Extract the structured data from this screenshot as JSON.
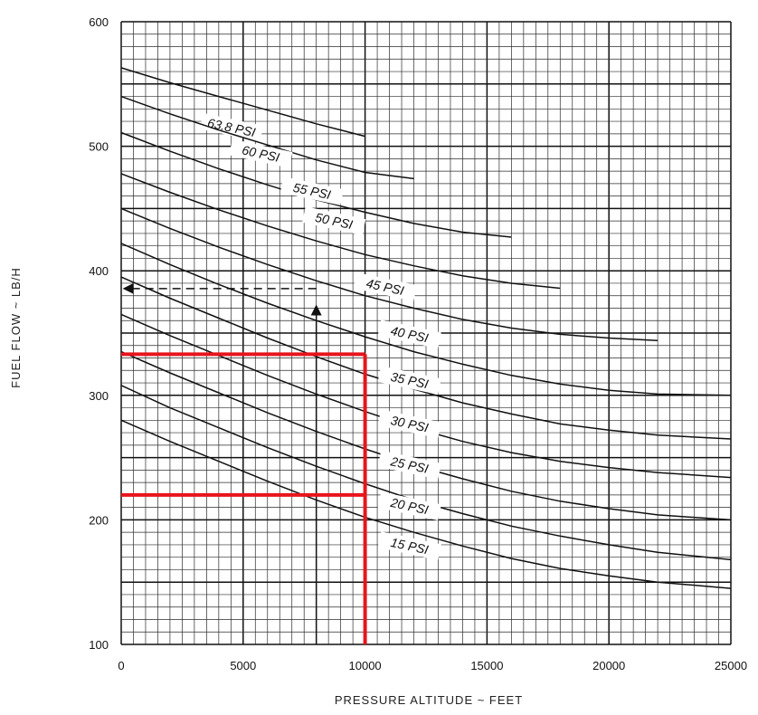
{
  "chart_data": {
    "type": "line",
    "xlabel": "PRESSURE  ALTITUDE  ~  FEET",
    "ylabel": "FUEL  FLOW  ~  LB/H",
    "xlim": [
      0,
      25000
    ],
    "ylim": [
      100,
      600
    ],
    "x_ticks": [
      0,
      5000,
      10000,
      15000,
      20000,
      25000
    ],
    "x_tick_labels": [
      "0",
      "5000",
      "10000",
      "15000",
      "20000",
      "25000"
    ],
    "y_ticks": [
      100,
      200,
      300,
      400,
      500,
      600
    ],
    "y_tick_labels": [
      "100",
      "200",
      "300",
      "400",
      "500",
      "600"
    ],
    "grid": true,
    "minor_x_step": 500,
    "minor_y_step": 10,
    "series": [
      {
        "name": "63.8 PSI",
        "label_at": [
          4500,
          513
        ],
        "points": [
          [
            0,
            563
          ],
          [
            2000,
            551
          ],
          [
            4000,
            540
          ],
          [
            6000,
            529
          ],
          [
            8000,
            518
          ],
          [
            10000,
            508
          ]
        ]
      },
      {
        "name": "60 PSI",
        "label_at": [
          5700,
          492
        ],
        "points": [
          [
            0,
            540
          ],
          [
            2000,
            526
          ],
          [
            4000,
            513
          ],
          [
            6000,
            501
          ],
          [
            8000,
            489
          ],
          [
            10000,
            479
          ],
          [
            12000,
            474
          ]
        ]
      },
      {
        "name": "55 PSI",
        "label_at": [
          7800,
          462
        ],
        "points": [
          [
            0,
            511
          ],
          [
            2000,
            496
          ],
          [
            4000,
            482
          ],
          [
            6000,
            469
          ],
          [
            8000,
            457
          ],
          [
            10000,
            447
          ],
          [
            12000,
            438
          ],
          [
            14000,
            431
          ],
          [
            16000,
            427
          ]
        ]
      },
      {
        "name": "50 PSI",
        "label_at": [
          8700,
          438
        ],
        "points": [
          [
            0,
            478
          ],
          [
            2000,
            463
          ],
          [
            4000,
            449
          ],
          [
            6000,
            436
          ],
          [
            8000,
            424
          ],
          [
            10000,
            413
          ],
          [
            12000,
            404
          ],
          [
            14000,
            396
          ],
          [
            16000,
            390
          ],
          [
            18000,
            386
          ]
        ]
      },
      {
        "name": "45 PSI",
        "label_at": [
          10800,
          385
        ],
        "points": [
          [
            0,
            450
          ],
          [
            2000,
            434
          ],
          [
            4000,
            419
          ],
          [
            6000,
            405
          ],
          [
            8000,
            392
          ],
          [
            10000,
            380
          ],
          [
            12000,
            370
          ],
          [
            14000,
            361
          ],
          [
            16000,
            354
          ],
          [
            18000,
            349
          ],
          [
            20000,
            346
          ],
          [
            22000,
            344
          ]
        ]
      },
      {
        "name": "40 PSI",
        "label_at": [
          11800,
          347
        ],
        "points": [
          [
            0,
            422
          ],
          [
            2000,
            405
          ],
          [
            4000,
            389
          ],
          [
            6000,
            374
          ],
          [
            8000,
            360
          ],
          [
            10000,
            347
          ],
          [
            12000,
            335
          ],
          [
            14000,
            325
          ],
          [
            16000,
            316
          ],
          [
            18000,
            309
          ],
          [
            20000,
            304
          ],
          [
            22000,
            301
          ],
          [
            25000,
            300
          ]
        ]
      },
      {
        "name": "35 PSI",
        "label_at": [
          11800,
          310
        ],
        "points": [
          [
            0,
            395
          ],
          [
            2000,
            378
          ],
          [
            4000,
            362
          ],
          [
            6000,
            346
          ],
          [
            8000,
            331
          ],
          [
            10000,
            317
          ],
          [
            12000,
            305
          ],
          [
            14000,
            294
          ],
          [
            16000,
            285
          ],
          [
            18000,
            277
          ],
          [
            20000,
            272
          ],
          [
            22000,
            268
          ],
          [
            25000,
            265
          ]
        ]
      },
      {
        "name": "30 PSI",
        "label_at": [
          11800,
          275
        ],
        "points": [
          [
            0,
            365
          ],
          [
            2000,
            348
          ],
          [
            4000,
            332
          ],
          [
            6000,
            316
          ],
          [
            8000,
            301
          ],
          [
            10000,
            287
          ],
          [
            12000,
            274
          ],
          [
            14000,
            263
          ],
          [
            16000,
            254
          ],
          [
            18000,
            247
          ],
          [
            20000,
            242
          ],
          [
            22000,
            238
          ],
          [
            25000,
            234
          ]
        ]
      },
      {
        "name": "25 PSI",
        "label_at": [
          11800,
          242
        ],
        "points": [
          [
            0,
            335
          ],
          [
            2000,
            318
          ],
          [
            4000,
            302
          ],
          [
            6000,
            286
          ],
          [
            8000,
            271
          ],
          [
            10000,
            257
          ],
          [
            12000,
            244
          ],
          [
            14000,
            233
          ],
          [
            16000,
            223
          ],
          [
            18000,
            215
          ],
          [
            20000,
            209
          ],
          [
            22000,
            204
          ],
          [
            25000,
            200
          ]
        ]
      },
      {
        "name": "20 PSI",
        "label_at": [
          11800,
          209
        ],
        "points": [
          [
            0,
            308
          ],
          [
            2000,
            290
          ],
          [
            4000,
            274
          ],
          [
            6000,
            258
          ],
          [
            8000,
            243
          ],
          [
            10000,
            229
          ],
          [
            12000,
            216
          ],
          [
            14000,
            205
          ],
          [
            16000,
            195
          ],
          [
            18000,
            187
          ],
          [
            20000,
            180
          ],
          [
            22000,
            174
          ],
          [
            25000,
            168
          ]
        ]
      },
      {
        "name": "15 PSI",
        "label_at": [
          11800,
          177
        ],
        "points": [
          [
            0,
            280
          ],
          [
            2000,
            263
          ],
          [
            4000,
            247
          ],
          [
            6000,
            231
          ],
          [
            8000,
            216
          ],
          [
            10000,
            202
          ],
          [
            12000,
            190
          ],
          [
            14000,
            179
          ],
          [
            16000,
            169
          ],
          [
            18000,
            161
          ],
          [
            20000,
            155
          ],
          [
            22000,
            150
          ],
          [
            25000,
            145
          ]
        ]
      }
    ],
    "annotations": {
      "dashed_arrow_example": {
        "altitude": 8000,
        "fuel_flow": 377
      },
      "red_lines": {
        "altitude": 10000,
        "upper_fuel_flow": 333,
        "lower_fuel_flow": 220
      }
    }
  }
}
